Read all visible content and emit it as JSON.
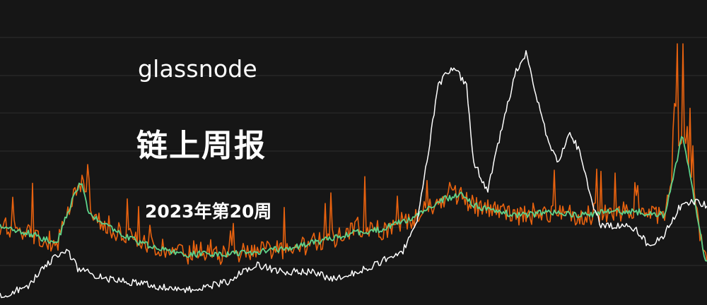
{
  "brand": "glassnode",
  "title": "链上周报",
  "issue": "2023年第20周",
  "colors": {
    "background": "#161616",
    "gridline": "#2e2e2e",
    "orange_series": "#e8620f",
    "green_series": "#5fd38a",
    "white_series": "#ffffff"
  }
}
